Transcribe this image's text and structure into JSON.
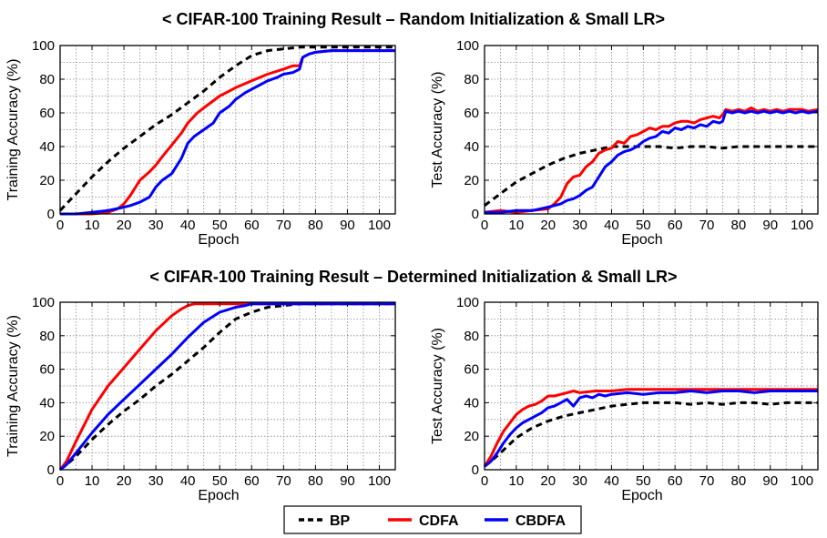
{
  "sections": [
    {
      "title": "< CIFAR-100 Training Result – Random Initialization & Small LR>"
    },
    {
      "title": "< CIFAR-100 Training Result – Determined Initialization & Small LR>"
    }
  ],
  "legend": [
    {
      "name": "BP",
      "color": "#000000",
      "dash": true
    },
    {
      "name": "CDFA",
      "color": "#ff0000",
      "dash": false
    },
    {
      "name": "CBDFA",
      "color": "#0000ff",
      "dash": false
    }
  ],
  "chart_data": [
    {
      "type": "line",
      "id": "random-train",
      "xlabel": "Epoch",
      "ylabel": "Training Accuracy (%)",
      "xlim": [
        0,
        105
      ],
      "ylim": [
        0,
        100
      ],
      "xticks": [
        "0",
        "10",
        "20",
        "30",
        "40",
        "50",
        "60",
        "70",
        "80",
        "90",
        "100"
      ],
      "yticks": [
        "0",
        "20",
        "40",
        "60",
        "80",
        "100"
      ],
      "series": [
        {
          "name": "BP",
          "x": [
            0,
            5,
            10,
            15,
            20,
            25,
            30,
            35,
            40,
            45,
            50,
            55,
            60,
            65,
            70,
            75,
            80,
            90,
            100,
            105
          ],
          "values": [
            2,
            12,
            22,
            31,
            39,
            46,
            53,
            59,
            66,
            73,
            81,
            88,
            94,
            97,
            98,
            99,
            99,
            99,
            99,
            99
          ]
        },
        {
          "name": "CDFA",
          "x": [
            0,
            5,
            10,
            15,
            18,
            20,
            22,
            25,
            28,
            30,
            32,
            35,
            38,
            40,
            43,
            45,
            50,
            55,
            60,
            65,
            70,
            73,
            75,
            76,
            78,
            80,
            85,
            90,
            95,
            100,
            105
          ],
          "values": [
            0,
            0,
            0,
            1,
            3,
            6,
            11,
            20,
            25,
            29,
            34,
            41,
            48,
            54,
            60,
            63,
            70,
            75,
            79,
            83,
            86,
            88,
            88,
            93,
            95,
            96,
            97,
            97,
            97,
            97,
            97
          ]
        },
        {
          "name": "CBDFA",
          "x": [
            0,
            5,
            10,
            15,
            20,
            22,
            25,
            28,
            30,
            32,
            35,
            38,
            40,
            42,
            45,
            48,
            50,
            53,
            55,
            58,
            60,
            63,
            65,
            68,
            70,
            73,
            75,
            76,
            78,
            80,
            85,
            90,
            95,
            100,
            105
          ],
          "values": [
            0,
            0,
            1,
            2,
            4,
            5,
            7,
            10,
            16,
            20,
            24,
            33,
            42,
            46,
            50,
            54,
            60,
            64,
            68,
            72,
            74,
            77,
            79,
            81,
            83,
            84,
            86,
            93,
            95,
            96,
            97,
            97,
            97,
            97,
            97
          ]
        }
      ]
    },
    {
      "type": "line",
      "id": "random-test",
      "xlabel": "Epoch",
      "ylabel": "Test Accuracy (%)",
      "xlim": [
        0,
        105
      ],
      "ylim": [
        0,
        100
      ],
      "xticks": [
        "0",
        "10",
        "20",
        "30",
        "40",
        "50",
        "60",
        "70",
        "80",
        "90",
        "100"
      ],
      "yticks": [
        "0",
        "20",
        "40",
        "60",
        "80",
        "100"
      ],
      "series": [
        {
          "name": "BP",
          "x": [
            0,
            5,
            10,
            15,
            20,
            25,
            30,
            35,
            40,
            45,
            50,
            55,
            60,
            65,
            70,
            75,
            80,
            85,
            90,
            95,
            100,
            105
          ],
          "values": [
            5,
            12,
            19,
            24,
            29,
            33,
            36,
            38,
            40,
            40,
            40,
            40,
            39,
            40,
            40,
            39,
            40,
            40,
            40,
            40,
            40,
            40
          ]
        },
        {
          "name": "CDFA",
          "x": [
            0,
            5,
            10,
            15,
            20,
            22,
            24,
            26,
            28,
            30,
            32,
            34,
            36,
            38,
            40,
            42,
            44,
            46,
            48,
            50,
            52,
            54,
            56,
            58,
            60,
            62,
            64,
            66,
            68,
            70,
            72,
            74,
            75,
            76,
            78,
            80,
            82,
            84,
            86,
            88,
            90,
            92,
            94,
            96,
            98,
            100,
            102,
            105
          ],
          "values": [
            1,
            2,
            1,
            2,
            3,
            6,
            10,
            18,
            22,
            23,
            28,
            31,
            36,
            38,
            39,
            43,
            42,
            46,
            47,
            49,
            51,
            50,
            52,
            52,
            54,
            55,
            55,
            54,
            56,
            57,
            58,
            57,
            59,
            62,
            61,
            62,
            61,
            63,
            61,
            62,
            61,
            62,
            61,
            62,
            62,
            62,
            61,
            62
          ]
        },
        {
          "name": "CBDFA",
          "x": [
            0,
            5,
            10,
            15,
            20,
            22,
            24,
            26,
            28,
            30,
            32,
            34,
            36,
            38,
            40,
            42,
            44,
            46,
            48,
            50,
            52,
            54,
            56,
            58,
            60,
            62,
            64,
            66,
            68,
            70,
            72,
            74,
            75,
            76,
            78,
            80,
            82,
            84,
            86,
            88,
            90,
            92,
            94,
            96,
            98,
            100,
            102,
            105
          ],
          "values": [
            1,
            1,
            2,
            2,
            4,
            5,
            6,
            8,
            9,
            11,
            14,
            16,
            22,
            28,
            31,
            35,
            37,
            38,
            40,
            43,
            45,
            46,
            49,
            48,
            51,
            50,
            52,
            51,
            53,
            52,
            55,
            54,
            55,
            61,
            60,
            61,
            60,
            61,
            60,
            61,
            60,
            61,
            60,
            61,
            60,
            61,
            60,
            61
          ]
        }
      ]
    },
    {
      "type": "line",
      "id": "determined-train",
      "xlabel": "Epoch",
      "ylabel": "Training Accuracy (%)",
      "xlim": [
        0,
        105
      ],
      "ylim": [
        0,
        100
      ],
      "xticks": [
        "0",
        "10",
        "20",
        "30",
        "40",
        "50",
        "60",
        "70",
        "80",
        "90",
        "100"
      ],
      "yticks": [
        "0",
        "20",
        "40",
        "60",
        "80",
        "100"
      ],
      "series": [
        {
          "name": "BP",
          "x": [
            0,
            2,
            5,
            10,
            15,
            20,
            25,
            30,
            35,
            40,
            45,
            50,
            55,
            60,
            65,
            70,
            75,
            80,
            90,
            100,
            105
          ],
          "values": [
            0,
            3,
            8,
            18,
            27,
            35,
            42,
            50,
            57,
            65,
            73,
            82,
            90,
            94,
            97,
            98,
            99,
            99,
            99,
            99,
            99
          ]
        },
        {
          "name": "CDFA",
          "x": [
            0,
            2,
            5,
            10,
            15,
            20,
            25,
            30,
            35,
            38,
            40,
            42,
            45,
            50,
            55,
            60,
            70,
            80,
            90,
            100,
            105
          ],
          "values": [
            0,
            5,
            17,
            36,
            50,
            61,
            72,
            83,
            92,
            96,
            98,
            99,
            99,
            99,
            99,
            99,
            99,
            99,
            99,
            99,
            99
          ]
        },
        {
          "name": "CBDFA",
          "x": [
            0,
            2,
            5,
            10,
            15,
            20,
            25,
            30,
            35,
            40,
            45,
            50,
            55,
            58,
            60,
            65,
            70,
            80,
            90,
            100,
            105
          ],
          "values": [
            0,
            3,
            10,
            22,
            33,
            42,
            51,
            60,
            69,
            79,
            88,
            94,
            97,
            98,
            99,
            99,
            99,
            99,
            99,
            99,
            99
          ]
        }
      ]
    },
    {
      "type": "line",
      "id": "determined-test",
      "xlabel": "Epoch",
      "ylabel": "Test Accuracy (%)",
      "xlim": [
        0,
        105
      ],
      "ylim": [
        0,
        100
      ],
      "xticks": [
        "0",
        "10",
        "20",
        "30",
        "40",
        "50",
        "60",
        "70",
        "80",
        "90",
        "100"
      ],
      "yticks": [
        "0",
        "20",
        "40",
        "60",
        "80",
        "100"
      ],
      "series": [
        {
          "name": "BP",
          "x": [
            0,
            2,
            5,
            10,
            15,
            20,
            25,
            30,
            35,
            40,
            45,
            50,
            55,
            60,
            65,
            70,
            75,
            80,
            85,
            90,
            95,
            100,
            105
          ],
          "values": [
            2,
            5,
            10,
            19,
            25,
            29,
            32,
            34,
            36,
            38,
            39,
            40,
            40,
            40,
            39,
            40,
            39,
            40,
            40,
            39,
            40,
            40,
            40
          ]
        },
        {
          "name": "CDFA",
          "x": [
            0,
            2,
            4,
            6,
            8,
            10,
            12,
            14,
            16,
            18,
            20,
            22,
            24,
            26,
            28,
            30,
            35,
            40,
            45,
            50,
            55,
            60,
            65,
            70,
            75,
            80,
            85,
            90,
            95,
            100,
            105
          ],
          "values": [
            2,
            8,
            16,
            23,
            28,
            33,
            36,
            38,
            39,
            41,
            44,
            44,
            45,
            46,
            47,
            46,
            47,
            47,
            48,
            48,
            48,
            48,
            48,
            48,
            48,
            48,
            48,
            48,
            48,
            48,
            48
          ]
        },
        {
          "name": "CBDFA",
          "x": [
            0,
            2,
            4,
            6,
            8,
            10,
            12,
            14,
            16,
            18,
            20,
            22,
            24,
            26,
            28,
            30,
            32,
            34,
            36,
            38,
            40,
            45,
            50,
            55,
            60,
            65,
            70,
            75,
            80,
            85,
            90,
            95,
            100,
            105
          ],
          "values": [
            2,
            5,
            10,
            16,
            21,
            25,
            28,
            30,
            32,
            34,
            37,
            38,
            40,
            42,
            38,
            43,
            44,
            43,
            45,
            44,
            45,
            46,
            45,
            46,
            46,
            47,
            46,
            47,
            47,
            46,
            47,
            47,
            47,
            47
          ]
        }
      ]
    }
  ]
}
